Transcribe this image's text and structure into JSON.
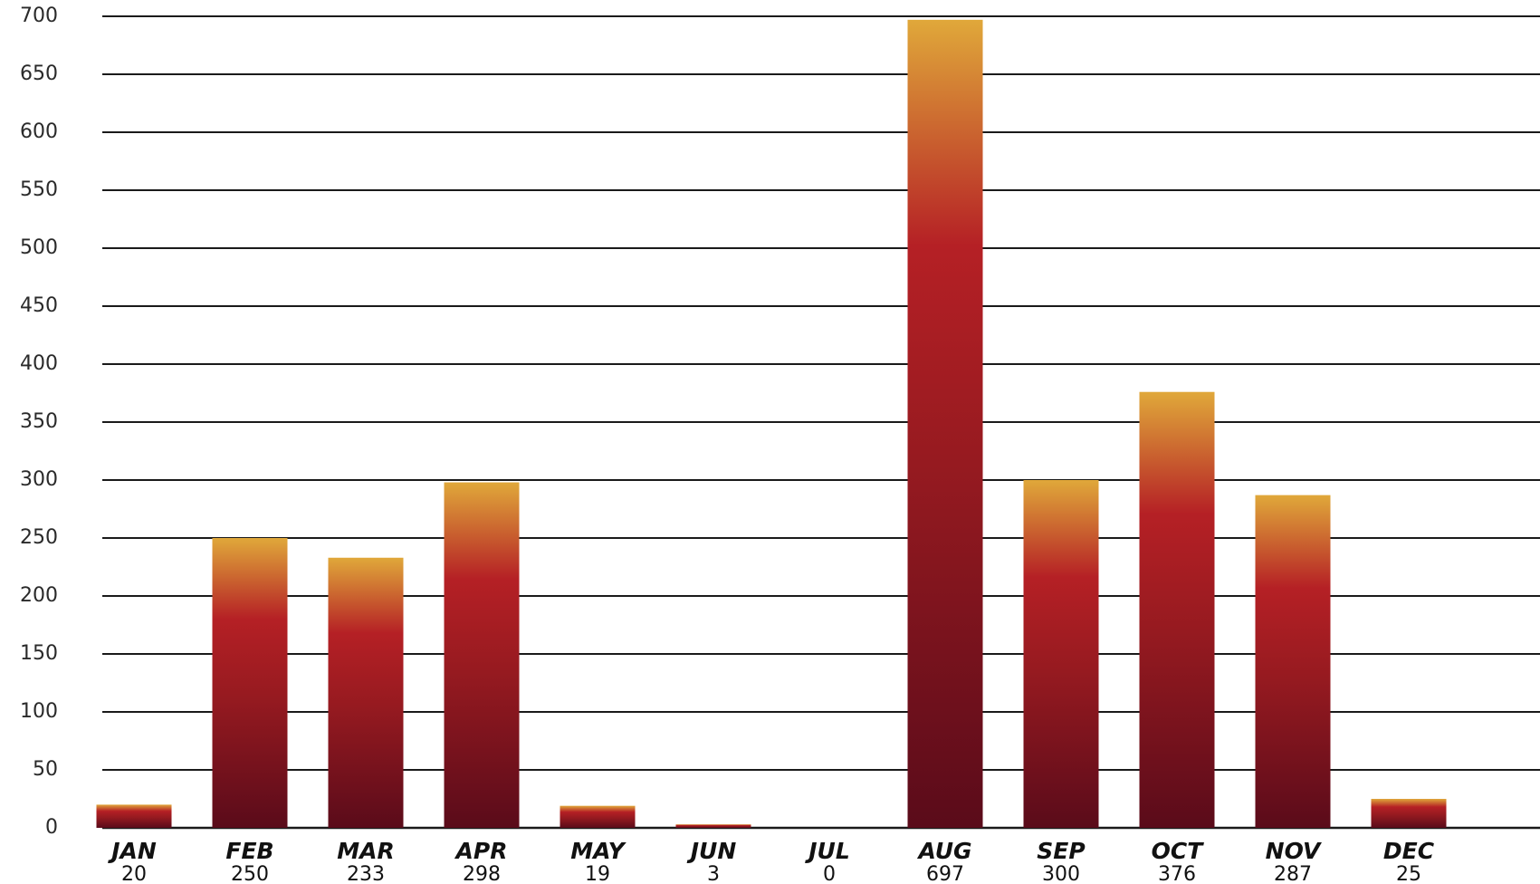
{
  "chart_data": {
    "type": "bar",
    "title": "",
    "xlabel": "",
    "ylabel": "",
    "categories": [
      "JAN",
      "FEB",
      "MAR",
      "APR",
      "MAY",
      "JUN",
      "JUL",
      "AUG",
      "SEP",
      "OCT",
      "NOV",
      "DEC"
    ],
    "values": [
      20,
      250,
      233,
      298,
      19,
      3,
      0,
      697,
      300,
      376,
      287,
      25
    ],
    "value_labels": [
      "20",
      "250",
      "233",
      "298",
      "19",
      "3",
      "0",
      "697",
      "300",
      "376",
      "287",
      "25"
    ],
    "ylim": [
      0,
      700
    ],
    "yticks": [
      0,
      50,
      100,
      150,
      200,
      250,
      300,
      350,
      400,
      450,
      500,
      550,
      600,
      650,
      700
    ],
    "grid": true,
    "legend": "none",
    "colors": {
      "bar_top": "#e0a83a",
      "bar_mid": "#b52025",
      "bar_bottom": "#5a0b1a",
      "gridline": "#1a1a1a",
      "text": "#111111"
    }
  }
}
